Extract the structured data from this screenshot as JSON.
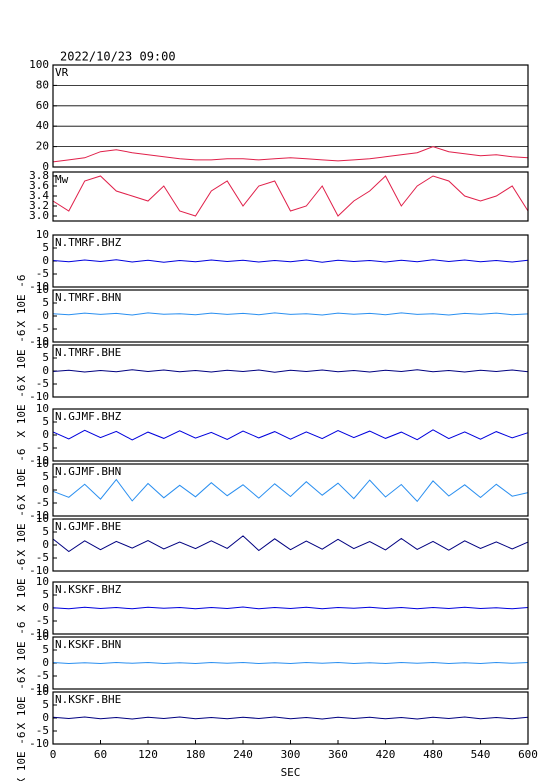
{
  "chart_data": [
    {
      "type": "line",
      "title": "2022/10/23 09:00",
      "label": "VR",
      "color": "#e0204a",
      "grid": true,
      "x": [
        0,
        20,
        40,
        60,
        80,
        100,
        120,
        140,
        160,
        180,
        200,
        220,
        240,
        260,
        280,
        300,
        320,
        340,
        360,
        380,
        400,
        420,
        440,
        460,
        480,
        500,
        520,
        540,
        560,
        580,
        600
      ],
      "values": [
        5,
        7,
        9,
        15,
        17,
        14,
        12,
        10,
        8,
        7,
        7,
        8,
        8,
        7,
        8,
        9,
        8,
        7,
        6,
        7,
        8,
        10,
        12,
        14,
        20,
        15,
        13,
        11,
        12,
        10,
        9
      ],
      "xlim": [
        0,
        600
      ],
      "ylim": [
        0,
        100
      ],
      "yticks": [
        0,
        20,
        40,
        60,
        80,
        100
      ]
    },
    {
      "type": "line",
      "label": "Mw",
      "color": "#e0204a",
      "x": [
        0,
        20,
        40,
        60,
        80,
        100,
        120,
        140,
        160,
        180,
        200,
        220,
        240,
        260,
        280,
        300,
        320,
        340,
        360,
        380,
        400,
        420,
        440,
        460,
        480,
        500,
        520,
        540,
        560,
        580,
        600
      ],
      "values": [
        3.3,
        3.1,
        3.7,
        3.8,
        3.5,
        3.4,
        3.3,
        3.6,
        3.1,
        3.0,
        3.5,
        3.7,
        3.2,
        3.6,
        3.7,
        3.1,
        3.2,
        3.6,
        3.0,
        3.3,
        3.5,
        3.8,
        3.2,
        3.6,
        3.8,
        3.7,
        3.4,
        3.3,
        3.4,
        3.6,
        3.1
      ],
      "xlim": [
        0,
        600
      ],
      "ylim": [
        2.9,
        3.88
      ],
      "yticks": [
        {
          "value": 3,
          "label": "3.0"
        },
        3.2,
        3.4,
        3.6,
        3.8
      ]
    },
    {
      "type": "line",
      "label": "N.TMRF.BHZ",
      "ylabel": "X 10E -6",
      "color": "#0000dd",
      "x": [
        0,
        20,
        40,
        60,
        80,
        100,
        120,
        140,
        160,
        180,
        200,
        220,
        240,
        260,
        280,
        300,
        320,
        340,
        360,
        380,
        400,
        420,
        440,
        460,
        480,
        500,
        520,
        540,
        560,
        580,
        600
      ],
      "values": [
        0.2,
        -0.3,
        0.4,
        -0.2,
        0.5,
        -0.4,
        0.3,
        -0.5,
        0.2,
        -0.3,
        0.4,
        -0.2,
        0.3,
        -0.4,
        0.2,
        -0.3,
        0.4,
        -0.5,
        0.3,
        -0.2,
        0.2,
        -0.4,
        0.3,
        -0.3,
        0.5,
        -0.2,
        0.4,
        -0.3,
        0.2,
        -0.4,
        0.3
      ],
      "xlim": [
        0,
        600
      ],
      "ylim": [
        -10,
        10
      ],
      "yticks": [
        -10,
        -5,
        0,
        5,
        10
      ]
    },
    {
      "type": "line",
      "label": "N.TMRF.BHN",
      "ylabel": "X 10E -6",
      "color": "#2a8ff0",
      "x": [
        0,
        20,
        40,
        60,
        80,
        100,
        120,
        140,
        160,
        180,
        200,
        220,
        240,
        260,
        280,
        300,
        320,
        340,
        360,
        380,
        400,
        420,
        440,
        460,
        480,
        500,
        520,
        540,
        560,
        580,
        600
      ],
      "values": [
        0.9,
        0.5,
        1.1,
        0.6,
        1.0,
        0.4,
        1.2,
        0.7,
        0.9,
        0.5,
        1.1,
        0.6,
        1.0,
        0.5,
        1.2,
        0.6,
        0.9,
        0.4,
        1.1,
        0.7,
        1.0,
        0.5,
        1.2,
        0.6,
        0.9,
        0.4,
        1.0,
        0.7,
        1.1,
        0.5,
        0.8
      ],
      "xlim": [
        0,
        600
      ],
      "ylim": [
        -10,
        10
      ],
      "yticks": [
        -10,
        -5,
        0,
        5,
        10
      ]
    },
    {
      "type": "line",
      "label": "N.TMRF.BHE",
      "ylabel": "X 10E -6",
      "color": "#000080",
      "x": [
        0,
        20,
        40,
        60,
        80,
        100,
        120,
        140,
        160,
        180,
        200,
        220,
        240,
        260,
        280,
        300,
        320,
        340,
        360,
        380,
        400,
        420,
        440,
        460,
        480,
        500,
        520,
        540,
        560,
        580,
        600
      ],
      "values": [
        -0.2,
        0.3,
        -0.4,
        0.2,
        -0.3,
        0.5,
        -0.2,
        0.4,
        -0.3,
        0.2,
        -0.4,
        0.3,
        -0.2,
        0.4,
        -0.5,
        0.3,
        -0.2,
        0.4,
        -0.3,
        0.2,
        -0.4,
        0.3,
        -0.2,
        0.5,
        -0.3,
        0.2,
        -0.4,
        0.3,
        -0.2,
        0.4,
        -0.3
      ],
      "xlim": [
        0,
        600
      ],
      "ylim": [
        -10,
        10
      ],
      "yticks": [
        -10,
        -5,
        0,
        5,
        10
      ]
    },
    {
      "type": "line",
      "label": "N.GJMF.BHZ",
      "ylabel": "X 10E -6",
      "color": "#0000dd",
      "x": [
        0,
        20,
        40,
        60,
        80,
        100,
        120,
        140,
        160,
        180,
        200,
        220,
        240,
        260,
        280,
        300,
        320,
        340,
        360,
        380,
        400,
        420,
        440,
        460,
        480,
        500,
        520,
        540,
        560,
        580,
        600
      ],
      "values": [
        1.2,
        -1.5,
        1.8,
        -1.0,
        1.4,
        -1.9,
        1.1,
        -1.3,
        1.6,
        -1.2,
        1.0,
        -1.7,
        1.5,
        -1.1,
        1.3,
        -1.6,
        1.2,
        -1.4,
        1.7,
        -1.0,
        1.5,
        -1.3,
        1.1,
        -1.8,
        2.0,
        -1.4,
        1.2,
        -1.6,
        1.3,
        -1.1,
        0.9
      ],
      "xlim": [
        0,
        600
      ],
      "ylim": [
        -10,
        10
      ],
      "yticks": [
        -10,
        -5,
        0,
        5,
        10
      ]
    },
    {
      "type": "line",
      "label": "N.GJMF.BHN",
      "ylabel": "X 10E -6",
      "color": "#2a8ff0",
      "x": [
        0,
        20,
        40,
        60,
        80,
        100,
        120,
        140,
        160,
        180,
        200,
        220,
        240,
        260,
        280,
        300,
        320,
        340,
        360,
        380,
        400,
        420,
        440,
        460,
        480,
        500,
        520,
        540,
        560,
        580,
        600
      ],
      "values": [
        -0.5,
        -2.8,
        2.2,
        -3.5,
        4.0,
        -4.2,
        2.5,
        -3.0,
        1.8,
        -2.6,
        2.8,
        -2.2,
        2.0,
        -3.1,
        2.4,
        -2.5,
        3.2,
        -2.0,
        2.6,
        -3.3,
        3.8,
        -2.7,
        2.1,
        -4.4,
        3.5,
        -2.3,
        2.0,
        -2.9,
        2.2,
        -2.4,
        -1.0
      ],
      "xlim": [
        0,
        600
      ],
      "ylim": [
        -10,
        10
      ],
      "yticks": [
        -10,
        -5,
        0,
        5,
        10
      ]
    },
    {
      "type": "line",
      "label": "N.GJMF.BHE",
      "ylabel": "X 10E -6",
      "color": "#000080",
      "x": [
        0,
        20,
        40,
        60,
        80,
        100,
        120,
        140,
        160,
        180,
        200,
        220,
        240,
        260,
        280,
        300,
        320,
        340,
        360,
        380,
        400,
        420,
        440,
        460,
        480,
        500,
        520,
        540,
        560,
        580,
        600
      ],
      "values": [
        2.3,
        -2.5,
        1.6,
        -1.8,
        1.4,
        -1.2,
        1.7,
        -1.5,
        1.1,
        -1.4,
        1.6,
        -1.3,
        3.5,
        -2.1,
        2.4,
        -1.8,
        1.5,
        -1.6,
        2.2,
        -1.4,
        1.3,
        -1.9,
        2.5,
        -1.7,
        1.4,
        -2.0,
        1.6,
        -1.3,
        1.2,
        -1.5,
        1.1
      ],
      "xlim": [
        0,
        600
      ],
      "ylim": [
        -10,
        10
      ],
      "yticks": [
        -10,
        -5,
        0,
        5,
        10
      ]
    },
    {
      "type": "line",
      "label": "N.KSKF.BHZ",
      "ylabel": "X 10E -6",
      "color": "#0000dd",
      "x": [
        0,
        20,
        40,
        60,
        80,
        100,
        120,
        140,
        160,
        180,
        200,
        220,
        240,
        260,
        280,
        300,
        320,
        340,
        360,
        380,
        400,
        420,
        440,
        460,
        480,
        500,
        520,
        540,
        560,
        580,
        600
      ],
      "values": [
        0.1,
        -0.3,
        0.3,
        -0.2,
        0.2,
        -0.3,
        0.3,
        -0.1,
        0.2,
        -0.3,
        0.2,
        -0.2,
        0.4,
        -0.3,
        0.2,
        -0.2,
        0.3,
        -0.3,
        0.2,
        -0.1,
        0.3,
        -0.2,
        0.2,
        -0.3,
        0.2,
        -0.2,
        0.3,
        -0.2,
        0.1,
        -0.3,
        0.2
      ],
      "xlim": [
        0,
        600
      ],
      "ylim": [
        -10,
        10
      ],
      "yticks": [
        -10,
        -5,
        0,
        5,
        10
      ]
    },
    {
      "type": "line",
      "label": "N.KSKF.BHN",
      "ylabel": "X 10E -6",
      "color": "#2a8ff0",
      "x": [
        0,
        20,
        40,
        60,
        80,
        100,
        120,
        140,
        160,
        180,
        200,
        220,
        240,
        260,
        280,
        300,
        320,
        340,
        360,
        380,
        400,
        420,
        440,
        460,
        480,
        500,
        520,
        540,
        560,
        580,
        600
      ],
      "values": [
        0.2,
        -0.2,
        0.1,
        -0.2,
        0.2,
        -0.1,
        0.2,
        -0.2,
        0.1,
        -0.2,
        0.2,
        -0.1,
        0.2,
        -0.2,
        0.1,
        -0.2,
        0.2,
        -0.1,
        0.2,
        -0.2,
        0.1,
        -0.2,
        0.2,
        -0.1,
        0.2,
        -0.2,
        0.1,
        -0.2,
        0.2,
        -0.1,
        0.2
      ],
      "xlim": [
        0,
        600
      ],
      "ylim": [
        -10,
        10
      ],
      "yticks": [
        -10,
        -5,
        0,
        5,
        10
      ]
    },
    {
      "type": "line",
      "label": "N.KSKF.BHE",
      "ylabel": "X 10E -6",
      "color": "#000080",
      "xlabel": "SEC",
      "x": [
        0,
        20,
        40,
        60,
        80,
        100,
        120,
        140,
        160,
        180,
        200,
        220,
        240,
        260,
        280,
        300,
        320,
        340,
        360,
        380,
        400,
        420,
        440,
        460,
        480,
        500,
        520,
        540,
        560,
        580,
        600
      ],
      "values": [
        0.3,
        -0.2,
        0.4,
        -0.3,
        0.2,
        -0.4,
        0.3,
        -0.2,
        0.4,
        -0.3,
        0.2,
        -0.3,
        0.3,
        -0.2,
        0.4,
        -0.3,
        0.2,
        -0.4,
        0.3,
        -0.2,
        0.3,
        -0.3,
        0.2,
        -0.4,
        0.3,
        -0.2,
        0.4,
        -0.3,
        0.2,
        -0.3,
        0.3
      ],
      "xlim": [
        0,
        600
      ],
      "ylim": [
        -10,
        10
      ],
      "yticks": [
        -10,
        -5,
        0,
        5,
        10
      ],
      "xticks": [
        0,
        60,
        120,
        180,
        240,
        300,
        360,
        420,
        480,
        540,
        600
      ]
    }
  ]
}
